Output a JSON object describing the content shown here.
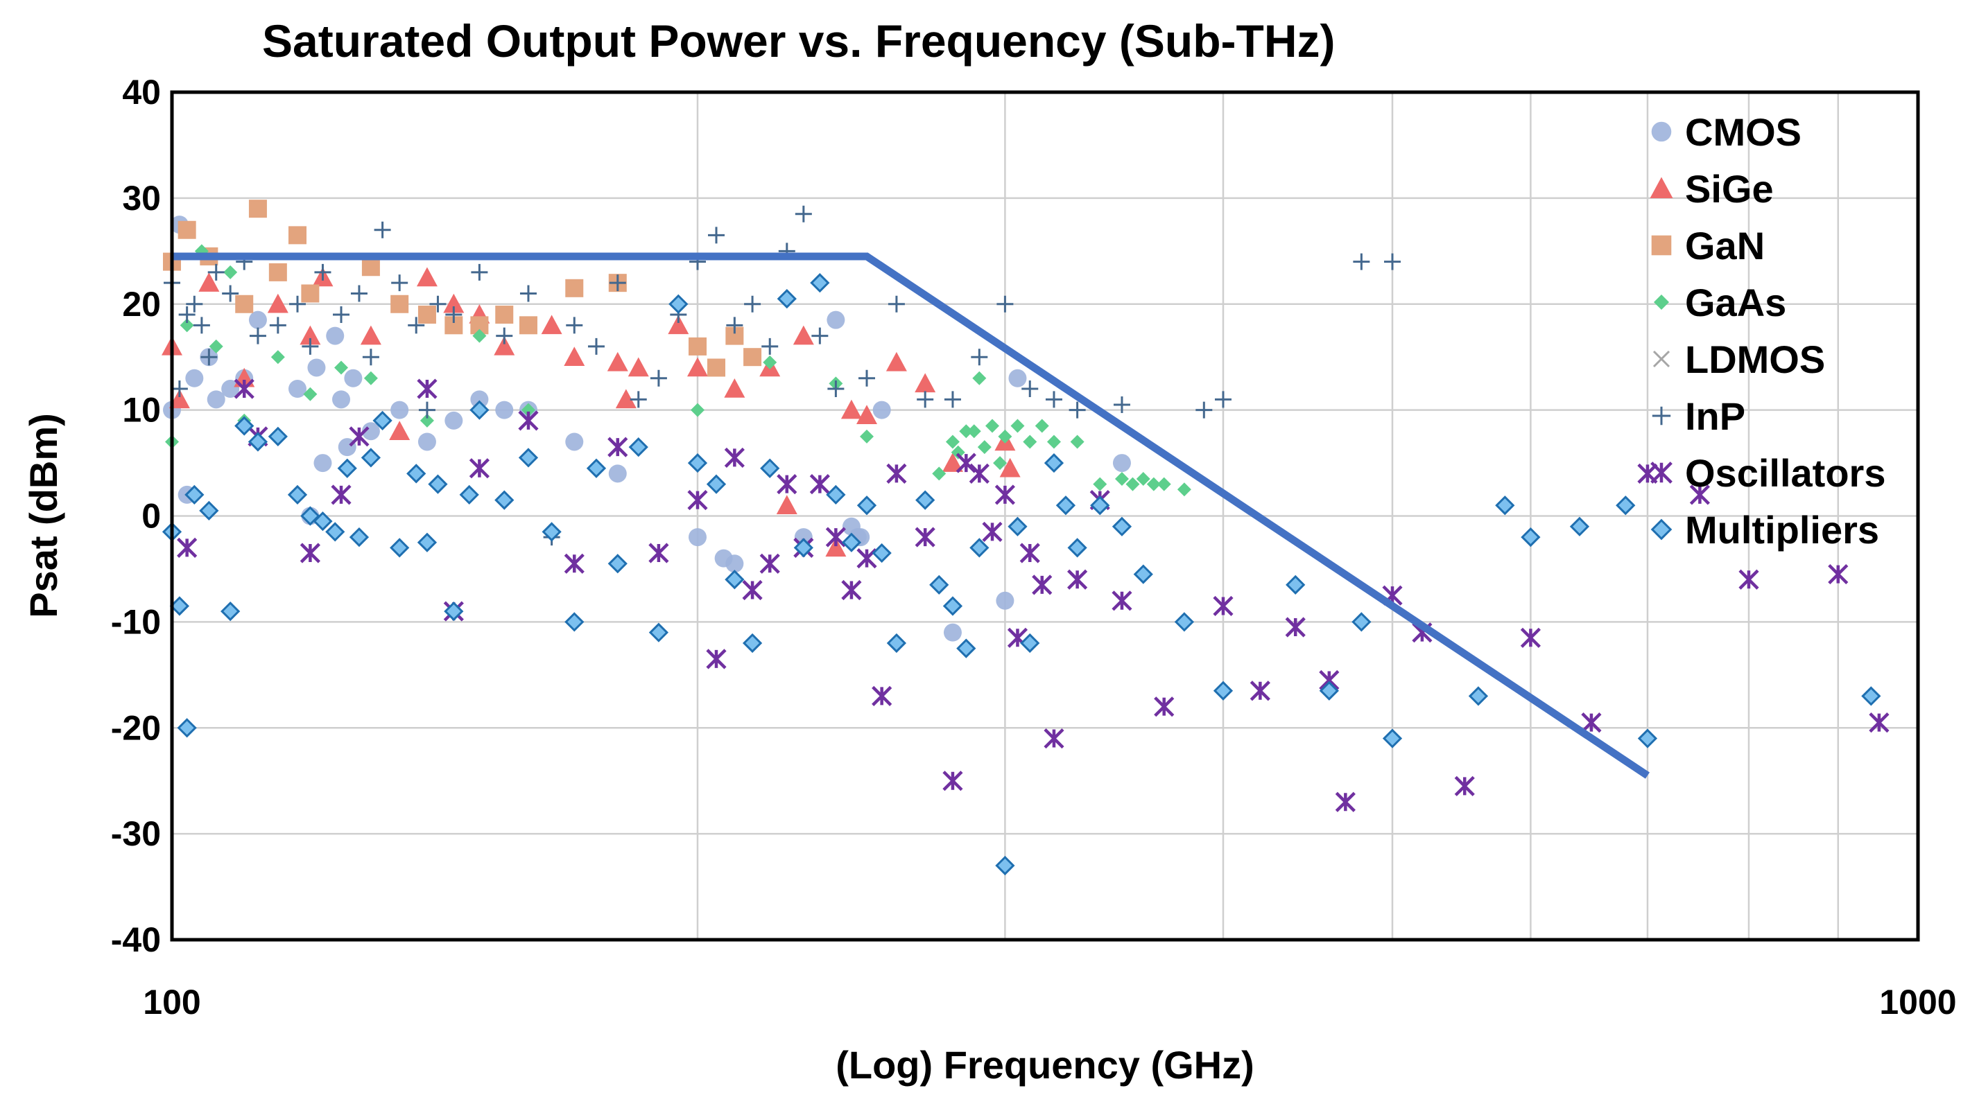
{
  "chart_data": {
    "type": "scatter",
    "title": "Saturated Output Power vs. Frequency (Sub-THz)",
    "xlabel": "(Log) Frequency (GHz)",
    "ylabel": "Psat (dBm)",
    "xscale": "log",
    "xlim": [
      100,
      1000
    ],
    "ylim": [
      -40,
      40
    ],
    "xticks": [
      100,
      1000
    ],
    "xtick_labels": [
      "100",
      "1000"
    ],
    "yticks": [
      40,
      30,
      20,
      10,
      0,
      -10,
      -20,
      -30,
      -40
    ],
    "ytick_labels": [
      "40",
      "30",
      "20",
      "10",
      "0",
      "-10",
      "-20",
      "-30",
      "-40"
    ],
    "legend_position": "top-right",
    "series": [
      {
        "name": "CMOS",
        "marker": "circle",
        "color": "#9db3dc",
        "x": [
          100,
          101,
          102,
          103,
          105,
          106,
          108,
          110,
          112,
          118,
          120,
          121,
          122,
          124,
          125,
          126,
          127,
          130,
          135,
          140,
          145,
          150,
          155,
          160,
          170,
          180,
          200,
          207,
          210,
          230,
          240,
          245,
          247,
          248,
          255,
          280,
          300,
          305,
          350
        ],
        "y": [
          10,
          27.5,
          2,
          13,
          15,
          11,
          12,
          13,
          18.5,
          12,
          0,
          14,
          5,
          17,
          11,
          6.5,
          13,
          8,
          10,
          7,
          9,
          11,
          10,
          10,
          7,
          4,
          -2,
          -4,
          -4.5,
          -2,
          18.5,
          -1,
          -2,
          -2,
          10,
          -11,
          -8,
          13,
          5
        ]
      },
      {
        "name": "SiGe",
        "marker": "triangle",
        "color": "#ee6a6a",
        "x": [
          100,
          101,
          105,
          110,
          115,
          120,
          122,
          130,
          135,
          140,
          145,
          150,
          155,
          165,
          170,
          180,
          182,
          185,
          195,
          200,
          210,
          220,
          225,
          230,
          240,
          245,
          250,
          260,
          270,
          280,
          300,
          302
        ],
        "y": [
          16,
          11,
          22,
          13,
          20,
          17,
          22.5,
          17,
          8,
          22.5,
          20,
          19,
          16,
          18,
          15,
          14.5,
          11,
          14,
          18,
          14,
          12,
          14,
          1,
          17,
          -3,
          10,
          9.5,
          14.5,
          12.5,
          5,
          7,
          4.5
        ]
      },
      {
        "name": "GaN",
        "marker": "square",
        "color": "#e3a47e",
        "x": [
          100,
          102,
          105,
          110,
          112,
          115,
          118,
          120,
          130,
          135,
          140,
          145,
          150,
          155,
          160,
          170,
          180,
          200,
          205,
          210,
          215
        ],
        "y": [
          24,
          27,
          24.5,
          20,
          29,
          23,
          26.5,
          21,
          23.5,
          20,
          19,
          18,
          18,
          19,
          18,
          21.5,
          22,
          16,
          14,
          17,
          15
        ]
      },
      {
        "name": "GaAs",
        "marker": "diamond-small",
        "color": "#5dcf8c",
        "x": [
          100,
          102,
          104,
          106,
          108,
          110,
          115,
          120,
          125,
          130,
          140,
          150,
          160,
          200,
          220,
          240,
          250,
          275,
          280,
          282,
          285,
          288,
          290,
          292,
          295,
          298,
          300,
          305,
          310,
          315,
          320,
          330,
          340,
          350,
          355,
          360,
          365,
          370,
          380
        ],
        "y": [
          7,
          18,
          25,
          16,
          23,
          9,
          15,
          11.5,
          14,
          13,
          9,
          17,
          10,
          10,
          14.5,
          12.5,
          7.5,
          4,
          7,
          6,
          8,
          8,
          13,
          6.5,
          8.5,
          5,
          7.5,
          8.5,
          7,
          8.5,
          7,
          7,
          3,
          3.5,
          3,
          3.5,
          3,
          3,
          2.5
        ]
      },
      {
        "name": "LDMOS",
        "marker": "x",
        "color": "#a6a6a6",
        "x": [],
        "y": []
      },
      {
        "name": "InP",
        "marker": "plus",
        "color": "#44688e",
        "x": [
          100,
          101,
          102,
          103,
          104,
          105,
          106,
          108,
          110,
          112,
          115,
          118,
          120,
          122,
          125,
          128,
          130,
          132,
          135,
          138,
          140,
          142,
          145,
          150,
          155,
          160,
          165,
          170,
          175,
          180,
          185,
          190,
          195,
          200,
          205,
          210,
          215,
          220,
          225,
          230,
          235,
          240,
          250,
          260,
          270,
          280,
          290,
          300,
          310,
          320,
          330,
          350,
          390,
          400,
          480,
          500
        ],
        "y": [
          22,
          12,
          19,
          20,
          18,
          15,
          23,
          21,
          24,
          17,
          18,
          20,
          16,
          23,
          19,
          21,
          15,
          27,
          22,
          18,
          10,
          20,
          19,
          23,
          17,
          21,
          -2,
          18,
          16,
          22,
          11,
          13,
          19,
          24,
          26.5,
          18,
          20,
          16,
          25,
          28.5,
          17,
          12,
          13,
          20,
          11,
          11,
          15,
          20,
          12,
          11,
          10,
          10.5,
          10,
          11,
          24,
          24
        ]
      },
      {
        "name": "Oscillators",
        "marker": "asterisk",
        "color": "#7030a0",
        "x": [
          102,
          110,
          112,
          120,
          125,
          128,
          140,
          145,
          150,
          160,
          170,
          180,
          190,
          200,
          205,
          210,
          215,
          220,
          225,
          230,
          235,
          240,
          245,
          250,
          255,
          260,
          270,
          280,
          285,
          290,
          295,
          300,
          305,
          310,
          315,
          320,
          330,
          340,
          350,
          370,
          400,
          420,
          440,
          460,
          470,
          500,
          520,
          550,
          600,
          650,
          700,
          750,
          800,
          900,
          950
        ],
        "y": [
          -3,
          12,
          7.5,
          -3.5,
          2,
          7.5,
          12,
          -9,
          4.5,
          9,
          -4.5,
          6.5,
          -3.5,
          1.5,
          -13.5,
          5.5,
          -7,
          -4.5,
          3,
          -3,
          3,
          -2,
          -7,
          -4,
          -17,
          4,
          -2,
          -25,
          5,
          4,
          -1.5,
          2,
          -11.5,
          -3.5,
          -6.5,
          -21,
          -6,
          1.5,
          -8,
          -18,
          -8.5,
          -16.5,
          -10.5,
          -15.5,
          -27,
          -7.5,
          -11,
          -25.5,
          -11.5,
          -19.5,
          4,
          2,
          -6,
          -5.5,
          -19.5
        ]
      },
      {
        "name": "Multipliers",
        "marker": "diamond",
        "color": "#2f8fd8",
        "x": [
          100,
          101,
          102,
          103,
          105,
          108,
          110,
          112,
          115,
          118,
          120,
          122,
          124,
          126,
          128,
          130,
          132,
          135,
          138,
          140,
          142,
          145,
          148,
          150,
          155,
          160,
          165,
          170,
          175,
          180,
          185,
          190,
          195,
          200,
          205,
          210,
          215,
          220,
          225,
          230,
          235,
          240,
          245,
          250,
          255,
          260,
          270,
          275,
          280,
          285,
          290,
          300,
          305,
          310,
          320,
          325,
          330,
          340,
          350,
          360,
          380,
          400,
          440,
          460,
          480,
          500,
          560,
          580,
          600,
          640,
          680,
          700,
          940
        ],
        "y": [
          -1.5,
          -8.5,
          -20,
          2,
          0.5,
          -9,
          8.5,
          7,
          7.5,
          2,
          0,
          -0.5,
          -1.5,
          4.5,
          -2,
          5.5,
          9,
          -3,
          4,
          -2.5,
          3,
          -9,
          2,
          10,
          1.5,
          5.5,
          -1.5,
          -10,
          4.5,
          -4.5,
          6.5,
          -11,
          20,
          5,
          3,
          -6,
          -12,
          4.5,
          20.5,
          -3,
          22,
          2,
          -2.5,
          1,
          -3.5,
          -12,
          1.5,
          -6.5,
          -8.5,
          -12.5,
          -3,
          -33,
          -1,
          -12,
          5,
          1,
          -3,
          1,
          -1,
          -5.5,
          -10,
          -16.5,
          -6.5,
          -16.5,
          -10,
          -21,
          -17,
          1,
          -2,
          -1,
          1,
          -21,
          -17
        ]
      }
    ],
    "envelope_line": {
      "name": "trend",
      "color": "#4472c4",
      "x": [
        100,
        250,
        700
      ],
      "y": [
        24.5,
        24.5,
        -24.5
      ]
    },
    "legend_entries": [
      "CMOS",
      "SiGe",
      "GaN",
      "GaAs",
      "LDMOS",
      "InP",
      "Oscillators",
      "Multipliers"
    ]
  }
}
